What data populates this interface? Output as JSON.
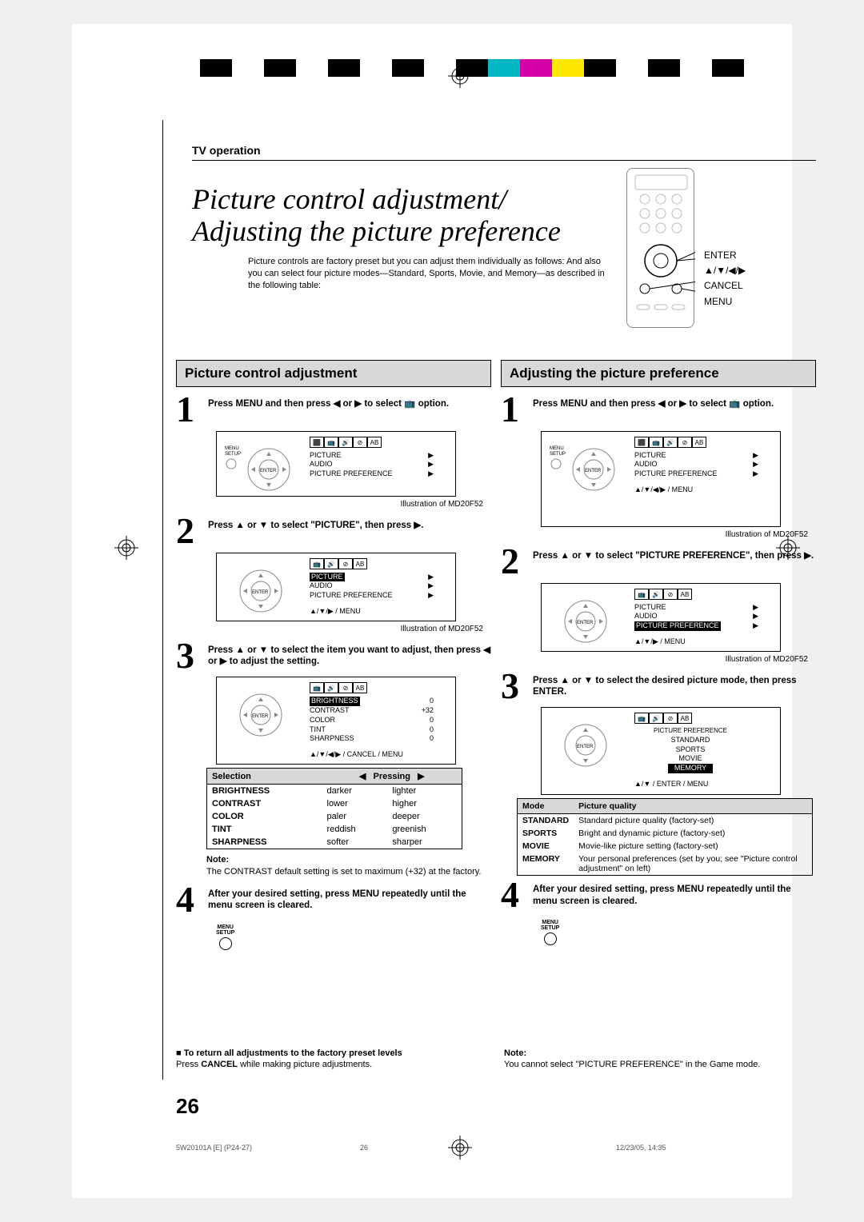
{
  "color_bar": [
    "#000000",
    "#ffffff",
    "#000000",
    "#ffffff",
    "#000000",
    "#ffffff",
    "#000000",
    "#ffffff",
    "#000000",
    "#00b7c3",
    "#d600a9",
    "#ffe800",
    "#000000",
    "#ffffff",
    "#000000",
    "#ffffff",
    "#000000"
  ],
  "header_section": "TV operation",
  "title_line1": "Picture control adjustment/",
  "title_line2": "Adjusting the picture preference",
  "intro": "Picture controls are factory preset but you can adjust them individually as follows: And also you can select four picture modes—Standard, Sports, Movie, and Memory—as described in the following table:",
  "remote_labels": [
    "ENTER",
    "▲/▼/◀/▶",
    "CANCEL",
    "MENU"
  ],
  "left": {
    "title": "Picture control adjustment",
    "step1": "Press MENU and then press ◀ or ▶ to select 📺 option.",
    "illus_caption": "Illustration of MD20F52",
    "menu1": {
      "items": [
        [
          "PICTURE",
          "▶"
        ],
        [
          "AUDIO",
          "▶"
        ],
        [
          "PICTURE PREFERENCE",
          "▶"
        ]
      ]
    },
    "step2": "Press ▲ or ▼ to select \"PICTURE\", then press ▶.",
    "menu2_highlight": "PICTURE",
    "nav2": "▲/▼/▶ / MENU",
    "step3": "Press ▲ or ▼ to select the item you want to adjust, then press ◀ or ▶ to adjust the setting.",
    "menu3": {
      "highlight": "BRIGHTNESS",
      "rows": [
        [
          "BRIGHTNESS",
          "0"
        ],
        [
          "CONTRAST",
          "+32"
        ],
        [
          "COLOR",
          "0"
        ],
        [
          "TINT",
          "0"
        ],
        [
          "SHARPNESS",
          "0"
        ]
      ]
    },
    "nav3": "▲/▼/◀/▶ / CANCEL / MENU",
    "sel_table": {
      "headers": [
        "Selection",
        "◀ Pressing ▶"
      ],
      "rows": [
        [
          "BRIGHTNESS",
          "darker",
          "lighter"
        ],
        [
          "CONTRAST",
          "lower",
          "higher"
        ],
        [
          "COLOR",
          "paler",
          "deeper"
        ],
        [
          "TINT",
          "reddish",
          "greenish"
        ],
        [
          "SHARPNESS",
          "softer",
          "sharper"
        ]
      ]
    },
    "note_title": "Note:",
    "note_text": "The CONTRAST default setting is set to maximum (+32) at the factory.",
    "step4": "After your desired setting, press MENU repeatedly until the menu screen is cleared.",
    "menu_icon": "MENU\nSETUP",
    "factory_title": "■ To return all adjustments to the factory preset levels",
    "factory_text": "Press CANCEL while making picture adjustments."
  },
  "right": {
    "title": "Adjusting the picture preference",
    "step1": "Press MENU and then press ◀ or ▶ to select 📺 option.",
    "illus_caption": "Illustration of MD20F52",
    "step2": "Press ▲ or ▼ to select \"PICTURE PREFERENCE\", then press ▶.",
    "menu2_highlight": "PICTURE PREFERENCE",
    "nav2": "▲/▼/▶ / MENU",
    "step3": "Press ▲ or ▼ to select the desired picture mode, then press ENTER.",
    "menu3": {
      "title": "PICTURE PREFERENCE",
      "rows": [
        "STANDARD",
        "SPORTS",
        "MOVIE",
        "MEMORY"
      ],
      "highlight": "MEMORY"
    },
    "nav3": "▲/▼ / ENTER / MENU",
    "mode_table": {
      "headers": [
        "Mode",
        "Picture quality"
      ],
      "rows": [
        [
          "STANDARD",
          "Standard picture quality (factory-set)"
        ],
        [
          "SPORTS",
          "Bright and dynamic picture (factory-set)"
        ],
        [
          "MOVIE",
          "Movie-like picture setting (factory-set)"
        ],
        [
          "MEMORY",
          "Your personal preferences (set by you; see \"Picture control adjustment\" on left)"
        ]
      ]
    },
    "step4": "After your desired setting, press MENU repeatedly until the menu screen is cleared.",
    "note_title": "Note:",
    "note_text": "You cannot select \"PICTURE PREFERENCE\" in the Game mode."
  },
  "page_number": "26",
  "footer_left": "5W20101A [E] (P24-27)",
  "footer_center": "26",
  "footer_right": "12/23/05, 14:35"
}
